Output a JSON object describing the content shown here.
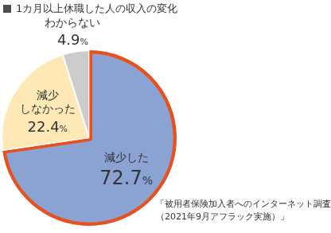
{
  "chart_data": {
    "type": "pie",
    "title": "1カ月以上休職した人の収入の変化",
    "categories": [
      "減少した",
      "減少\nしなかった",
      "わからない"
    ],
    "values": [
      72.7,
      22.4,
      4.9
    ],
    "value_labels": [
      "72.7%",
      "22.4%",
      "4.9%"
    ],
    "colors": [
      "#8aa3d3",
      "#fde8b6",
      "#cccccc"
    ],
    "data_labels": true,
    "annotations": [
      "「被用者保険加入者へのインターネット調査\n（2021年9月アフラック実施）」"
    ]
  }
}
